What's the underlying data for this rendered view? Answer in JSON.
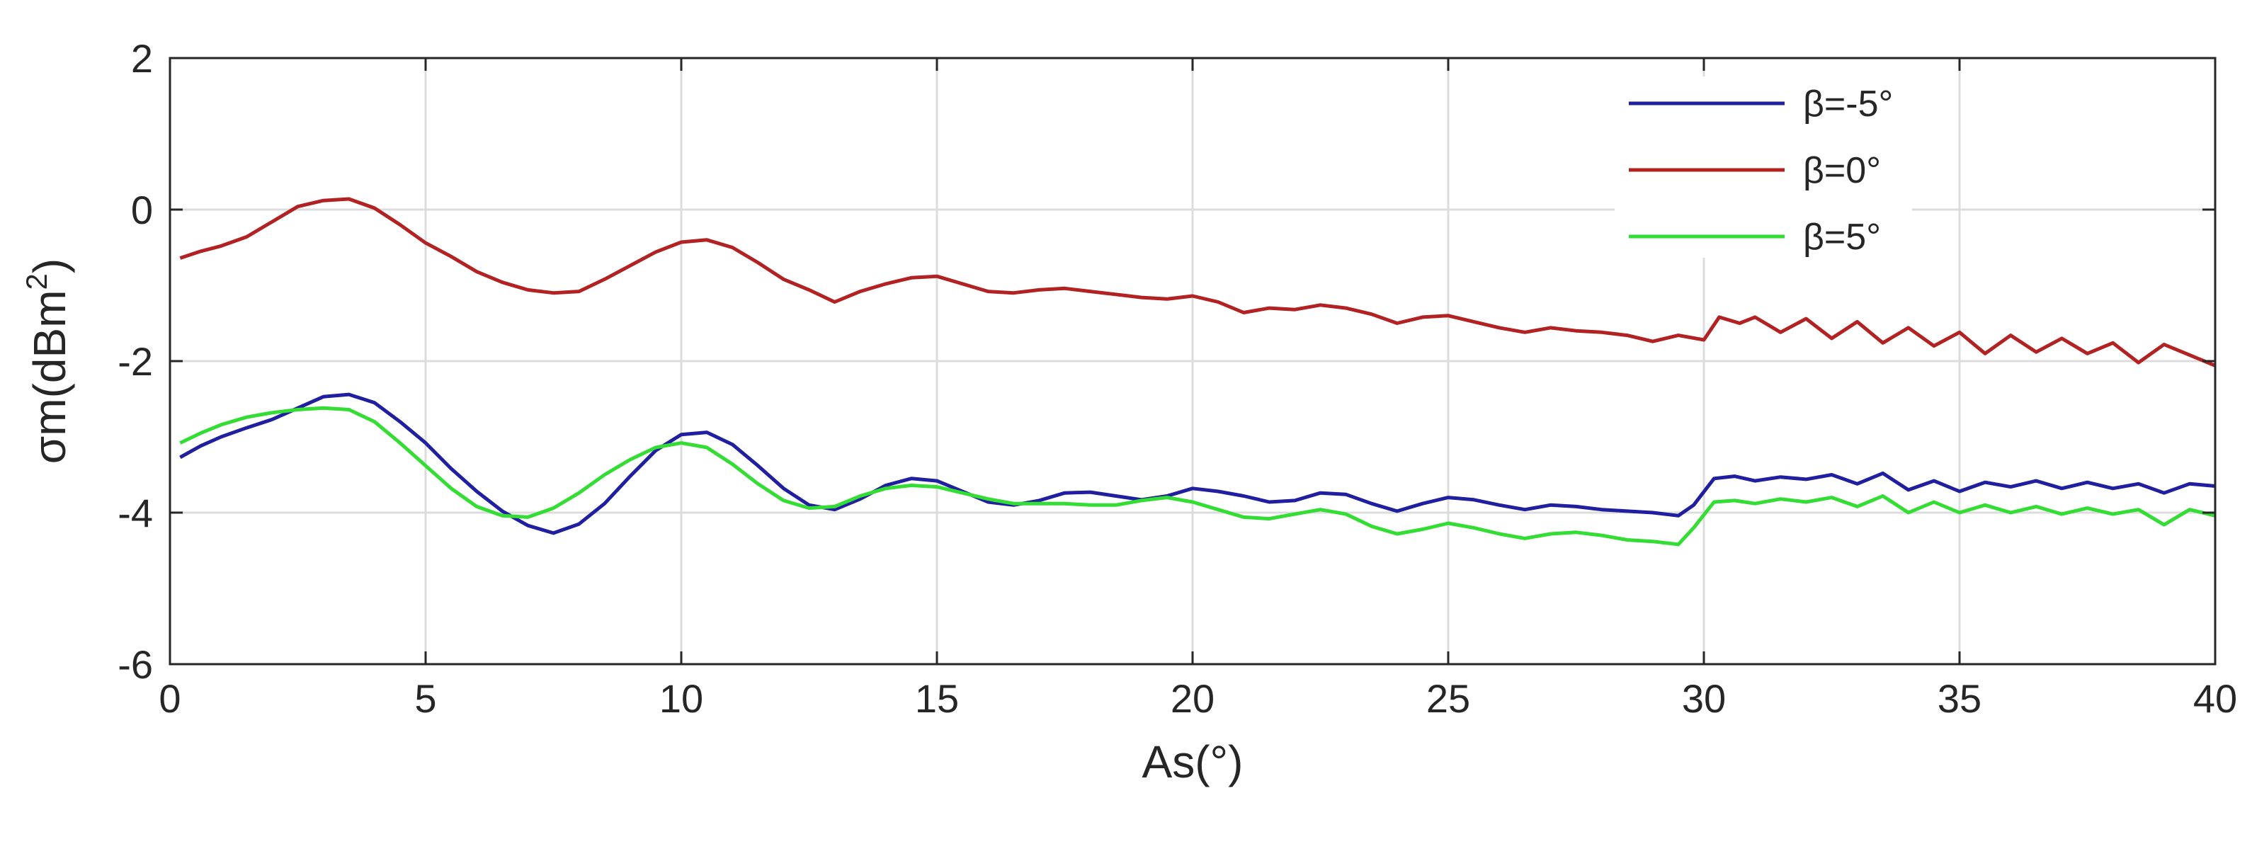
{
  "chart_data": {
    "type": "line",
    "xlabel": "As(°)",
    "ylabel_main": "σm(dBm",
    "ylabel_sup": "2",
    "ylabel_close": ")",
    "xlim": [
      0,
      40
    ],
    "ylim": [
      -6,
      2
    ],
    "xticks": [
      0,
      5,
      10,
      15,
      20,
      25,
      30,
      35,
      40
    ],
    "yticks": [
      -6,
      -4,
      -2,
      0,
      2
    ],
    "xtick_labels": [
      "0",
      "5",
      "10",
      "15",
      "20",
      "25",
      "30",
      "35",
      "40"
    ],
    "ytick_labels": [
      "-6",
      "-4",
      "-2",
      "0",
      "2"
    ],
    "grid": true,
    "legend_position": "top-right",
    "series": [
      {
        "name": "β=-5°",
        "color": "#1f1fa0",
        "points": [
          [
            0.2,
            -3.27
          ],
          [
            0.6,
            -3.12
          ],
          [
            1.0,
            -3.0
          ],
          [
            1.5,
            -2.88
          ],
          [
            2.0,
            -2.77
          ],
          [
            2.5,
            -2.62
          ],
          [
            3.0,
            -2.47
          ],
          [
            3.5,
            -2.44
          ],
          [
            4.0,
            -2.55
          ],
          [
            4.5,
            -2.8
          ],
          [
            5.0,
            -3.08
          ],
          [
            5.5,
            -3.42
          ],
          [
            6.0,
            -3.72
          ],
          [
            6.5,
            -3.98
          ],
          [
            7.0,
            -4.17
          ],
          [
            7.5,
            -4.27
          ],
          [
            8.0,
            -4.15
          ],
          [
            8.5,
            -3.88
          ],
          [
            9.0,
            -3.52
          ],
          [
            9.5,
            -3.18
          ],
          [
            10.0,
            -2.97
          ],
          [
            10.5,
            -2.94
          ],
          [
            11.0,
            -3.1
          ],
          [
            11.5,
            -3.38
          ],
          [
            12.0,
            -3.68
          ],
          [
            12.5,
            -3.9
          ],
          [
            13.0,
            -3.96
          ],
          [
            13.5,
            -3.82
          ],
          [
            14.0,
            -3.64
          ],
          [
            14.5,
            -3.55
          ],
          [
            15.0,
            -3.58
          ],
          [
            15.5,
            -3.72
          ],
          [
            16.0,
            -3.86
          ],
          [
            16.5,
            -3.9
          ],
          [
            17.0,
            -3.84
          ],
          [
            17.5,
            -3.74
          ],
          [
            18.0,
            -3.73
          ],
          [
            18.5,
            -3.78
          ],
          [
            19.0,
            -3.83
          ],
          [
            19.5,
            -3.78
          ],
          [
            20.0,
            -3.68
          ],
          [
            20.5,
            -3.72
          ],
          [
            21.0,
            -3.78
          ],
          [
            21.5,
            -3.86
          ],
          [
            22.0,
            -3.84
          ],
          [
            22.5,
            -3.74
          ],
          [
            23.0,
            -3.76
          ],
          [
            23.5,
            -3.88
          ],
          [
            24.0,
            -3.98
          ],
          [
            24.5,
            -3.88
          ],
          [
            25.0,
            -3.8
          ],
          [
            25.5,
            -3.83
          ],
          [
            26.0,
            -3.9
          ],
          [
            26.5,
            -3.96
          ],
          [
            27.0,
            -3.9
          ],
          [
            27.5,
            -3.92
          ],
          [
            28.0,
            -3.96
          ],
          [
            28.5,
            -3.98
          ],
          [
            29.0,
            -4.0
          ],
          [
            29.5,
            -4.04
          ],
          [
            29.8,
            -3.9
          ],
          [
            30.2,
            -3.55
          ],
          [
            30.6,
            -3.52
          ],
          [
            31.0,
            -3.58
          ],
          [
            31.5,
            -3.53
          ],
          [
            32.0,
            -3.56
          ],
          [
            32.5,
            -3.5
          ],
          [
            33.0,
            -3.62
          ],
          [
            33.5,
            -3.48
          ],
          [
            34.0,
            -3.7
          ],
          [
            34.5,
            -3.58
          ],
          [
            35.0,
            -3.72
          ],
          [
            35.5,
            -3.6
          ],
          [
            36.0,
            -3.66
          ],
          [
            36.5,
            -3.58
          ],
          [
            37.0,
            -3.68
          ],
          [
            37.5,
            -3.6
          ],
          [
            38.0,
            -3.68
          ],
          [
            38.5,
            -3.62
          ],
          [
            39.0,
            -3.74
          ],
          [
            39.5,
            -3.62
          ],
          [
            40.0,
            -3.65
          ]
        ]
      },
      {
        "name": "β=0°",
        "color": "#b22222",
        "points": [
          [
            0.2,
            -0.64
          ],
          [
            0.6,
            -0.55
          ],
          [
            1.0,
            -0.48
          ],
          [
            1.5,
            -0.36
          ],
          [
            2.0,
            -0.16
          ],
          [
            2.5,
            0.04
          ],
          [
            3.0,
            0.12
          ],
          [
            3.5,
            0.14
          ],
          [
            4.0,
            0.02
          ],
          [
            4.5,
            -0.2
          ],
          [
            5.0,
            -0.44
          ],
          [
            5.5,
            -0.62
          ],
          [
            6.0,
            -0.82
          ],
          [
            6.5,
            -0.96
          ],
          [
            7.0,
            -1.06
          ],
          [
            7.5,
            -1.1
          ],
          [
            8.0,
            -1.08
          ],
          [
            8.5,
            -0.92
          ],
          [
            9.0,
            -0.74
          ],
          [
            9.5,
            -0.56
          ],
          [
            10.0,
            -0.43
          ],
          [
            10.5,
            -0.4
          ],
          [
            11.0,
            -0.5
          ],
          [
            11.5,
            -0.7
          ],
          [
            12.0,
            -0.92
          ],
          [
            12.5,
            -1.06
          ],
          [
            13.0,
            -1.22
          ],
          [
            13.5,
            -1.08
          ],
          [
            14.0,
            -0.98
          ],
          [
            14.5,
            -0.9
          ],
          [
            15.0,
            -0.88
          ],
          [
            15.5,
            -0.98
          ],
          [
            16.0,
            -1.08
          ],
          [
            16.5,
            -1.1
          ],
          [
            17.0,
            -1.06
          ],
          [
            17.5,
            -1.04
          ],
          [
            18.0,
            -1.08
          ],
          [
            18.5,
            -1.12
          ],
          [
            19.0,
            -1.16
          ],
          [
            19.5,
            -1.18
          ],
          [
            20.0,
            -1.14
          ],
          [
            20.5,
            -1.22
          ],
          [
            21.0,
            -1.36
          ],
          [
            21.5,
            -1.3
          ],
          [
            22.0,
            -1.32
          ],
          [
            22.5,
            -1.26
          ],
          [
            23.0,
            -1.3
          ],
          [
            23.5,
            -1.38
          ],
          [
            24.0,
            -1.5
          ],
          [
            24.5,
            -1.42
          ],
          [
            25.0,
            -1.4
          ],
          [
            25.5,
            -1.48
          ],
          [
            26.0,
            -1.56
          ],
          [
            26.5,
            -1.62
          ],
          [
            27.0,
            -1.56
          ],
          [
            27.5,
            -1.6
          ],
          [
            28.0,
            -1.62
          ],
          [
            28.5,
            -1.66
          ],
          [
            29.0,
            -1.74
          ],
          [
            29.5,
            -1.66
          ],
          [
            30.0,
            -1.72
          ],
          [
            30.3,
            -1.42
          ],
          [
            30.7,
            -1.5
          ],
          [
            31.0,
            -1.42
          ],
          [
            31.5,
            -1.62
          ],
          [
            32.0,
            -1.44
          ],
          [
            32.5,
            -1.7
          ],
          [
            33.0,
            -1.48
          ],
          [
            33.5,
            -1.76
          ],
          [
            34.0,
            -1.56
          ],
          [
            34.5,
            -1.8
          ],
          [
            35.0,
            -1.62
          ],
          [
            35.5,
            -1.9
          ],
          [
            36.0,
            -1.66
          ],
          [
            36.5,
            -1.88
          ],
          [
            37.0,
            -1.7
          ],
          [
            37.5,
            -1.9
          ],
          [
            38.0,
            -1.76
          ],
          [
            38.5,
            -2.02
          ],
          [
            39.0,
            -1.78
          ],
          [
            39.5,
            -1.92
          ],
          [
            40.0,
            -2.06
          ]
        ]
      },
      {
        "name": "β=5°",
        "color": "#33dd33",
        "points": [
          [
            0.2,
            -3.08
          ],
          [
            0.6,
            -2.95
          ],
          [
            1.0,
            -2.84
          ],
          [
            1.5,
            -2.74
          ],
          [
            2.0,
            -2.68
          ],
          [
            2.5,
            -2.64
          ],
          [
            3.0,
            -2.62
          ],
          [
            3.5,
            -2.64
          ],
          [
            4.0,
            -2.8
          ],
          [
            4.5,
            -3.08
          ],
          [
            5.0,
            -3.38
          ],
          [
            5.5,
            -3.68
          ],
          [
            6.0,
            -3.92
          ],
          [
            6.5,
            -4.04
          ],
          [
            7.0,
            -4.06
          ],
          [
            7.5,
            -3.94
          ],
          [
            8.0,
            -3.74
          ],
          [
            8.5,
            -3.5
          ],
          [
            9.0,
            -3.3
          ],
          [
            9.5,
            -3.14
          ],
          [
            10.0,
            -3.08
          ],
          [
            10.5,
            -3.14
          ],
          [
            11.0,
            -3.36
          ],
          [
            11.5,
            -3.62
          ],
          [
            12.0,
            -3.84
          ],
          [
            12.5,
            -3.94
          ],
          [
            13.0,
            -3.92
          ],
          [
            13.5,
            -3.78
          ],
          [
            14.0,
            -3.68
          ],
          [
            14.5,
            -3.64
          ],
          [
            15.0,
            -3.66
          ],
          [
            15.5,
            -3.74
          ],
          [
            16.0,
            -3.82
          ],
          [
            16.5,
            -3.88
          ],
          [
            17.0,
            -3.88
          ],
          [
            17.5,
            -3.88
          ],
          [
            18.0,
            -3.9
          ],
          [
            18.5,
            -3.9
          ],
          [
            19.0,
            -3.84
          ],
          [
            19.5,
            -3.8
          ],
          [
            20.0,
            -3.86
          ],
          [
            20.5,
            -3.96
          ],
          [
            21.0,
            -4.06
          ],
          [
            21.5,
            -4.08
          ],
          [
            22.0,
            -4.02
          ],
          [
            22.5,
            -3.96
          ],
          [
            23.0,
            -4.02
          ],
          [
            23.5,
            -4.18
          ],
          [
            24.0,
            -4.28
          ],
          [
            24.5,
            -4.22
          ],
          [
            25.0,
            -4.14
          ],
          [
            25.5,
            -4.2
          ],
          [
            26.0,
            -4.28
          ],
          [
            26.5,
            -4.34
          ],
          [
            27.0,
            -4.28
          ],
          [
            27.5,
            -4.26
          ],
          [
            28.0,
            -4.3
          ],
          [
            28.5,
            -4.36
          ],
          [
            29.0,
            -4.38
          ],
          [
            29.5,
            -4.42
          ],
          [
            29.8,
            -4.2
          ],
          [
            30.2,
            -3.86
          ],
          [
            30.6,
            -3.84
          ],
          [
            31.0,
            -3.88
          ],
          [
            31.5,
            -3.82
          ],
          [
            32.0,
            -3.86
          ],
          [
            32.5,
            -3.8
          ],
          [
            33.0,
            -3.92
          ],
          [
            33.5,
            -3.78
          ],
          [
            34.0,
            -4.0
          ],
          [
            34.5,
            -3.86
          ],
          [
            35.0,
            -4.0
          ],
          [
            35.5,
            -3.9
          ],
          [
            36.0,
            -4.0
          ],
          [
            36.5,
            -3.92
          ],
          [
            37.0,
            -4.02
          ],
          [
            37.5,
            -3.94
          ],
          [
            38.0,
            -4.02
          ],
          [
            38.5,
            -3.96
          ],
          [
            39.0,
            -4.16
          ],
          [
            39.5,
            -3.96
          ],
          [
            40.0,
            -4.04
          ]
        ]
      }
    ]
  }
}
